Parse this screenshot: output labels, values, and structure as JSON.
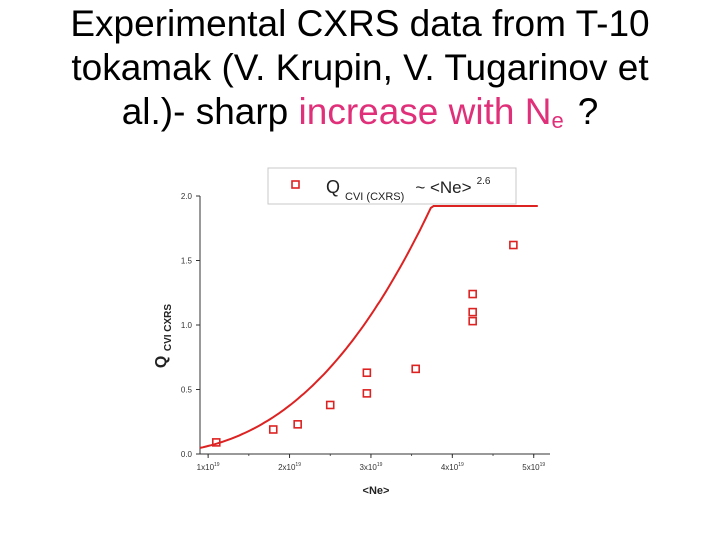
{
  "title": {
    "line1": "Experimental CXRS data from T-10",
    "line2": "tokamak (V. Krupin, V. Tugarinov et",
    "line3_prefix": "al.)- sharp",
    "line3_highlight": "increase with",
    "ne_symbol": "N",
    "ne_subscript": "e",
    "question_mark": "?"
  },
  "colors": {
    "highlight": "#e0307a",
    "series": "#dd2222"
  },
  "chart_data": {
    "type": "scatter",
    "legend": {
      "placement": "top-center",
      "label_main": "Q",
      "label_sub": "CVI  (CXRS)",
      "label_rel": "~  <Ne>",
      "label_exp": "2.6"
    },
    "xlabel": "<Ne>",
    "ylabel_main": "Q",
    "ylabel_sub": "CVI  CXRS",
    "xlim": [
      9e+18,
      5.2e+19
    ],
    "ylim": [
      0.0,
      2.0
    ],
    "x_ticks": [
      {
        "value": 1e+19,
        "mantissa": "1x10",
        "exp": "19"
      },
      {
        "value": 2e+19,
        "mantissa": "2x10",
        "exp": "19"
      },
      {
        "value": 3e+19,
        "mantissa": "3x10",
        "exp": "19"
      },
      {
        "value": 4e+19,
        "mantissa": "4x10",
        "exp": "19"
      },
      {
        "value": 5e+19,
        "mantissa": "5x10",
        "exp": "19"
      }
    ],
    "y_ticks": [
      {
        "value": 0.0,
        "label": "0.0"
      },
      {
        "value": 0.5,
        "label": "0.5"
      },
      {
        "value": 1.0,
        "label": "1.0"
      },
      {
        "value": 1.5,
        "label": "1.5"
      },
      {
        "value": 2.0,
        "label": "2.0"
      }
    ],
    "series": [
      {
        "marker": "square",
        "x": [
          1.1e+19,
          1.8e+19,
          2.1e+19,
          2.5e+19,
          2.95e+19,
          2.95e+19,
          3.55e+19,
          4.25e+19,
          4.25e+19,
          4.25e+19,
          4.75e+19
        ],
        "y": [
          0.09,
          0.19,
          0.23,
          0.38,
          0.47,
          0.63,
          0.66,
          1.03,
          1.1,
          1.24,
          1.62
        ]
      }
    ],
    "fit": {
      "form": "a*x^2.6",
      "exponent": 2.6,
      "coefficient": 0.062,
      "x_unit": 1e+19,
      "x_range": [
        9e+18,
        5.05e+19
      ]
    }
  }
}
